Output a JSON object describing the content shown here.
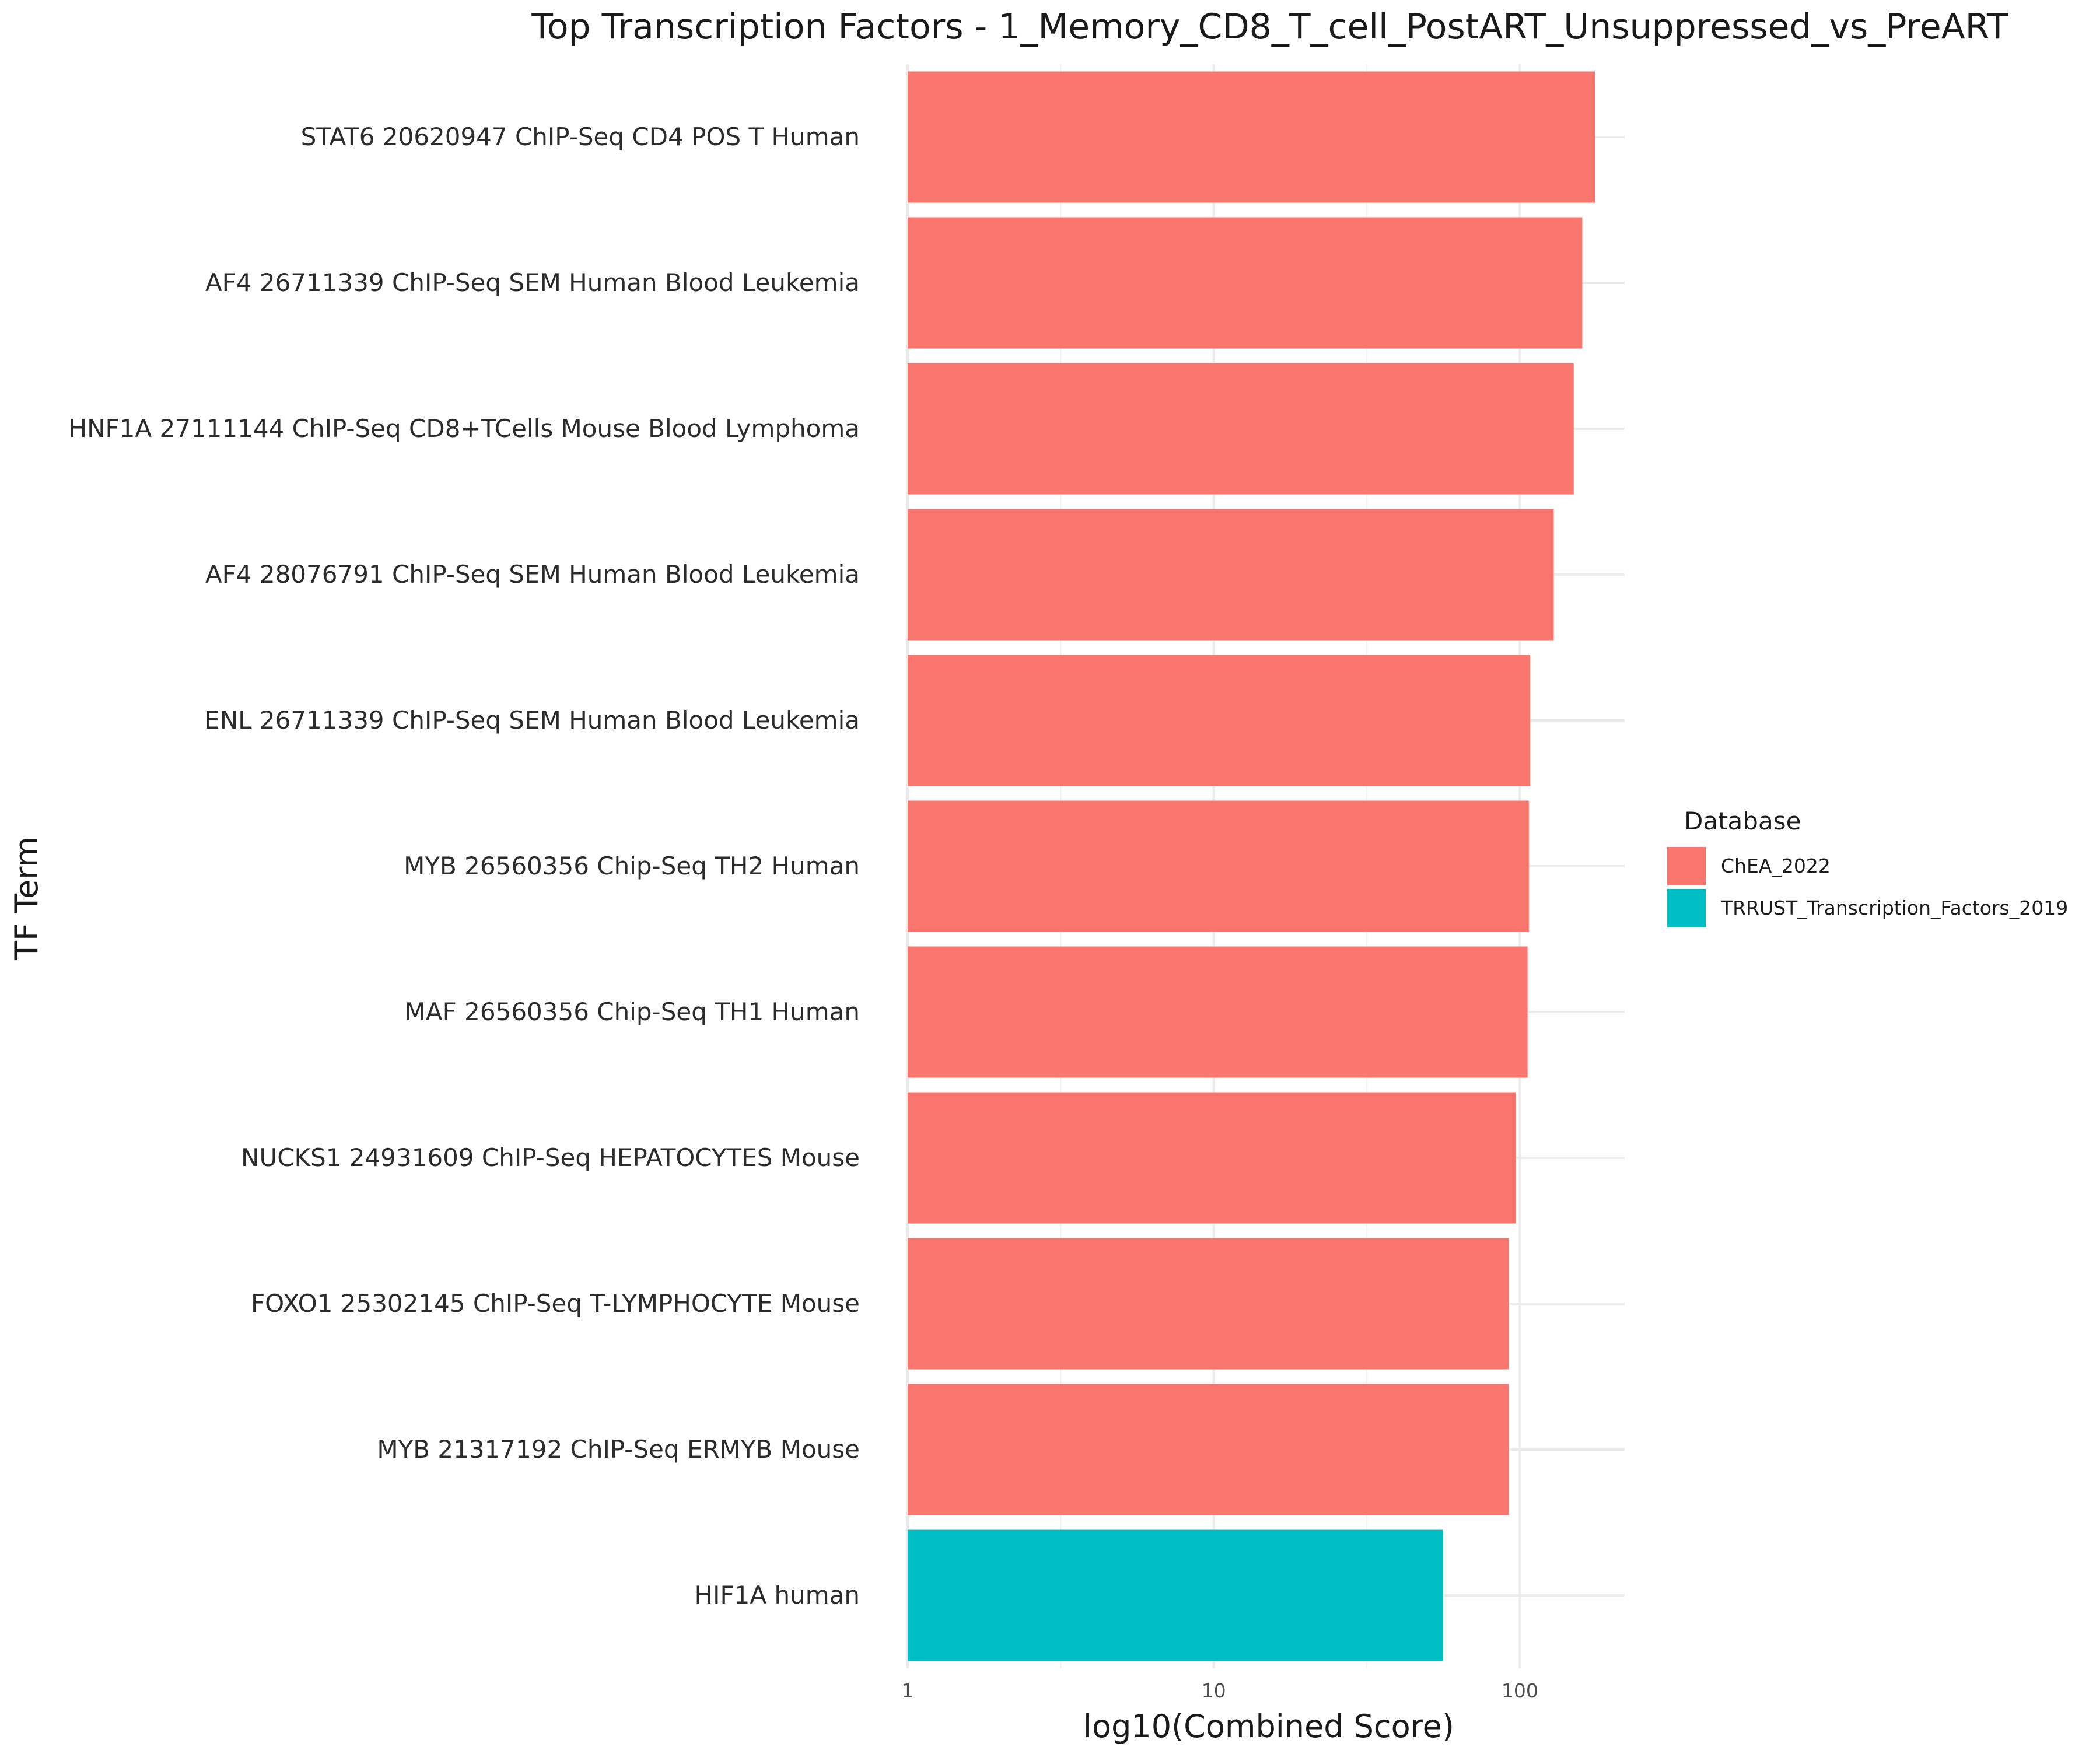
{
  "chart_data": {
    "type": "bar",
    "orientation": "horizontal",
    "title": "Top Transcription Factors - 1_Memory_CD8_T_cell_PostART_Unsuppressed_vs_PreART",
    "xlabel": "log10(Combined Score)",
    "ylabel": "TF Term",
    "x_scale": "log10",
    "xlim": [
      1,
      220
    ],
    "x_ticks": [
      1,
      10,
      100
    ],
    "x_tick_labels": [
      "1",
      "10",
      "100"
    ],
    "grid": true,
    "categories": [
      "STAT6 20620947 ChIP-Seq CD4 POS T Human",
      "AF4 26711339 ChIP-Seq SEM Human Blood Leukemia",
      "HNF1A 27111144 ChIP-Seq CD8+TCells Mouse Blood Lymphoma",
      "AF4 28076791 ChIP-Seq SEM Human Blood Leukemia",
      "ENL 26711339 ChIP-Seq SEM Human Blood Leukemia",
      "MYB 26560356 Chip-Seq TH2 Human",
      "MAF 26560356 Chip-Seq TH1 Human",
      "NUCKS1 24931609 ChIP-Seq HEPATOCYTES Mouse",
      "FOXO1 25302145 ChIP-Seq T-LYMPHOCYTE Mouse",
      "MYB 21317192 ChIP-Seq ERMYB Mouse",
      "HIF1A human"
    ],
    "values": [
      176,
      160,
      150,
      129,
      108,
      107,
      106,
      97,
      92,
      92,
      56
    ],
    "database": [
      "ChEA_2022",
      "ChEA_2022",
      "ChEA_2022",
      "ChEA_2022",
      "ChEA_2022",
      "ChEA_2022",
      "ChEA_2022",
      "ChEA_2022",
      "ChEA_2022",
      "ChEA_2022",
      "TRRUST_Transcription_Factors_2019"
    ],
    "legend": {
      "title": "Database",
      "placement": "right",
      "entries": [
        {
          "label": "ChEA_2022",
          "color": "#F8766D"
        },
        {
          "label": "TRRUST_Transcription_Factors_2019",
          "color": "#00BFC4"
        }
      ]
    }
  }
}
